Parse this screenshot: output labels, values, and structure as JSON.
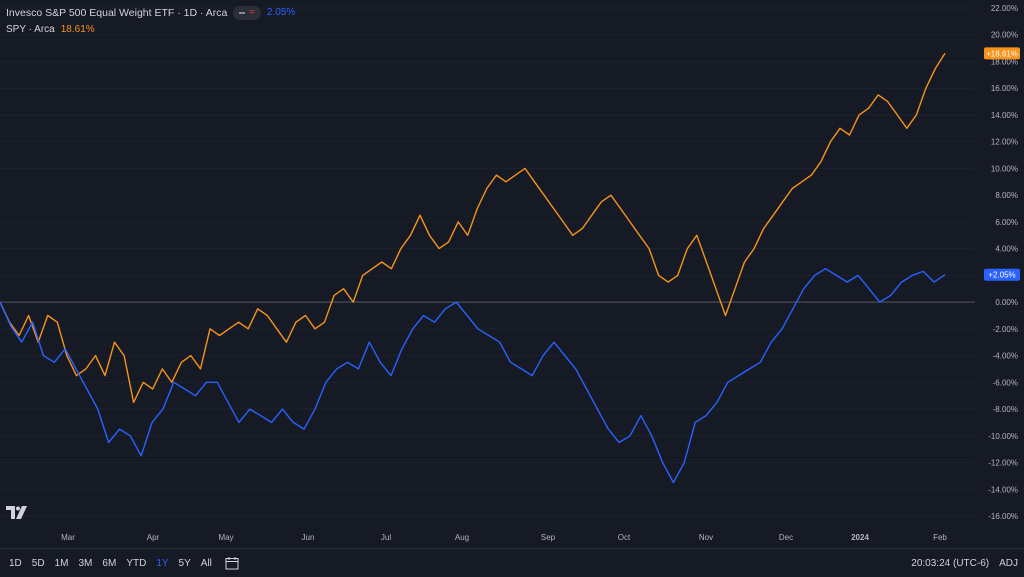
{
  "legend": {
    "main_title": "Invesco S&P 500 Equal Weight ETF · 1D · Arca",
    "main_value": "2.05%",
    "spy_title": "SPY · Arca",
    "spy_value": "18.61%"
  },
  "colors": {
    "main": "#2962ff",
    "spy": "#f7931a",
    "bg": "#161a25"
  },
  "price_labels": {
    "spy": "+18.61%",
    "main": "+2.05%"
  },
  "bottom": {
    "ranges": [
      "1D",
      "5D",
      "1M",
      "3M",
      "6M",
      "YTD",
      "1Y",
      "5Y",
      "All"
    ],
    "active_range": "1Y",
    "time": "20:03:24 (UTC-6)",
    "adj": "ADJ"
  },
  "chart_data": {
    "type": "line",
    "ylim": [
      -16,
      22
    ],
    "y_ticks": [
      "22.00%",
      "20.00%",
      "18.00%",
      "16.00%",
      "14.00%",
      "12.00%",
      "10.00%",
      "8.00%",
      "6.00%",
      "4.00%",
      "2.00%",
      "0.00%",
      "-2.00%",
      "-4.00%",
      "-6.00%",
      "-8.00%",
      "-10.00%",
      "-12.00%",
      "-14.00%",
      "-16.00%"
    ],
    "x_labels": [
      "Mar",
      "Apr",
      "May",
      "Jun",
      "Jul",
      "Aug",
      "Sep",
      "Oct",
      "Nov",
      "Dec",
      "2024",
      "Feb"
    ],
    "series": [
      {
        "name": "SPY",
        "values": [
          0,
          -1.5,
          -2.5,
          -1,
          -3,
          -1,
          -1.5,
          -4,
          -5.5,
          -5,
          -4,
          -5.5,
          -3,
          -4,
          -7.5,
          -6,
          -6.5,
          -5,
          -6,
          -4.5,
          -4,
          -5,
          -2,
          -2.5,
          -2,
          -1.5,
          -2,
          -0.5,
          -1,
          -2,
          -3,
          -1.5,
          -1,
          -2,
          -1.5,
          0.5,
          1,
          0,
          2,
          2.5,
          3,
          2.5,
          4,
          5,
          6.5,
          5,
          4,
          4.5,
          6,
          5,
          7,
          8.5,
          9.5,
          9,
          9.5,
          10,
          9,
          8,
          7,
          6,
          5,
          5.5,
          6.5,
          7.5,
          8,
          7,
          6,
          5,
          4,
          2,
          1.5,
          2,
          4,
          5,
          3,
          1,
          -1,
          1,
          3,
          4,
          5.5,
          6.5,
          7.5,
          8.5,
          9,
          9.5,
          10.5,
          12,
          13,
          12.5,
          14,
          14.5,
          15.5,
          15,
          14,
          13,
          14,
          16,
          17.5,
          18.61
        ]
      },
      {
        "name": "Invesco S&P 500 Equal Weight ETF",
        "values": [
          0,
          -1.8,
          -3,
          -1.5,
          -4,
          -4.5,
          -3.5,
          -5,
          -6.5,
          -8,
          -10.5,
          -9.5,
          -10,
          -11.5,
          -9,
          -8,
          -6,
          -6.5,
          -7,
          -6,
          -6,
          -7.5,
          -9,
          -8,
          -8.5,
          -9,
          -8,
          -9,
          -9.5,
          -8,
          -6,
          -5,
          -4.5,
          -5,
          -3,
          -4.5,
          -5.5,
          -3.5,
          -2,
          -1,
          -1.5,
          -0.5,
          0,
          -1,
          -2,
          -2.5,
          -3,
          -4.5,
          -5,
          -5.5,
          -4,
          -3,
          -4,
          -5,
          -6.5,
          -8,
          -9.5,
          -10.5,
          -10,
          -8.5,
          -10,
          -12,
          -13.5,
          -12,
          -9,
          -8.5,
          -7.5,
          -6,
          -5.5,
          -5,
          -4.5,
          -3,
          -2,
          -0.5,
          1,
          2,
          2.5,
          2,
          1.5,
          2,
          1,
          0,
          0.5,
          1.5,
          2,
          2.3,
          1.5,
          2.05
        ]
      }
    ]
  }
}
